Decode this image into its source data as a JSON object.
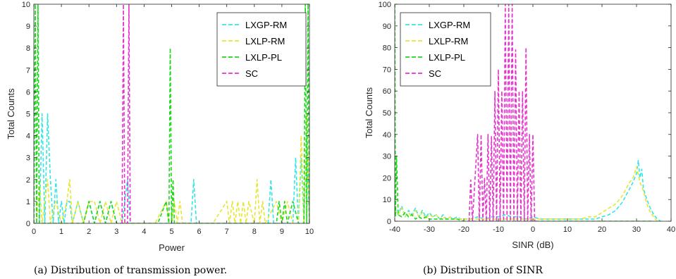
{
  "series_colors": {
    "LXGP-RM": "#33e6e6",
    "LXLP-RM": "#e6e633",
    "LXLP-PL": "#19d919",
    "SC": "#e633cc"
  },
  "chart_data": [
    {
      "type": "line",
      "caption": "(a) Distribution of transmission power.",
      "title": "",
      "xlabel": "Power",
      "ylabel": "Total Counts",
      "xlim": [
        0,
        10
      ],
      "ylim": [
        0,
        10
      ],
      "xticks": [
        0,
        1,
        2,
        3,
        4,
        5,
        6,
        7,
        8,
        9,
        10
      ],
      "yticks": [
        0,
        1,
        2,
        3,
        4,
        5,
        6,
        7,
        8,
        9,
        10
      ],
      "grid": false,
      "legend": "top-right",
      "series": [
        {
          "name": "LXGP-RM",
          "x": [
            0.05,
            0.2,
            0.3,
            0.4,
            0.5,
            0.6,
            0.7,
            0.8,
            0.9,
            1.0,
            1.1,
            1.2,
            1.3,
            1.4,
            1.6,
            1.8,
            2.0,
            2.2,
            2.4,
            2.6,
            2.8,
            3.0,
            3.2,
            3.3,
            3.4,
            3.5,
            3.6,
            4.0,
            4.4,
            4.8,
            5.2,
            5.6,
            5.7,
            5.8,
            5.9,
            6.0,
            6.4,
            6.8,
            7.2,
            7.6,
            8.0,
            8.4,
            8.5,
            8.6,
            8.7,
            8.8,
            9.0,
            9.2,
            9.4,
            9.5,
            9.6,
            9.7,
            9.8,
            9.9,
            10.0
          ],
          "y": [
            0,
            0,
            5,
            0,
            5,
            2,
            0,
            2,
            0,
            1,
            0,
            1,
            1,
            0,
            1,
            0,
            1,
            0,
            1,
            0,
            1,
            0,
            0,
            1,
            2,
            0,
            0,
            0,
            0,
            0,
            0,
            0,
            0,
            2,
            0,
            0,
            0,
            0,
            0,
            0,
            0,
            0,
            0,
            2,
            0,
            0,
            0,
            0,
            0,
            3,
            0,
            3,
            0,
            4,
            0
          ]
        },
        {
          "name": "LXLP-RM",
          "x": [
            0.1,
            0.2,
            0.3,
            0.4,
            0.5,
            0.6,
            0.8,
            1.0,
            1.2,
            1.3,
            1.4,
            1.6,
            1.8,
            2.0,
            2.2,
            2.4,
            2.6,
            2.8,
            3.0,
            3.2,
            3.6,
            4.0,
            4.4,
            4.8,
            4.9,
            5.0,
            5.1,
            5.2,
            5.3,
            5.4,
            6.0,
            6.5,
            7.0,
            7.1,
            7.2,
            7.3,
            7.4,
            7.5,
            7.6,
            7.7,
            7.8,
            8.0,
            8.1,
            8.2,
            8.3,
            8.4,
            8.8,
            9.0,
            9.2,
            9.4,
            9.6,
            9.7,
            9.8,
            9.9,
            10.0
          ],
          "y": [
            0,
            2,
            0,
            1,
            2,
            0,
            1,
            0,
            1,
            2,
            0,
            1,
            0,
            1,
            1,
            0,
            1,
            0,
            1,
            0,
            0,
            0,
            0,
            1,
            0,
            0,
            1,
            0,
            1,
            0,
            0,
            0,
            1,
            0,
            1,
            0,
            1,
            0,
            1,
            0,
            1,
            0,
            2,
            0,
            1,
            0,
            1,
            0,
            1,
            0,
            0,
            4,
            0,
            5,
            0
          ]
        },
        {
          "name": "LXLP-PL",
          "x": [
            0.0,
            0.05,
            0.1,
            0.15,
            0.2,
            0.5,
            1.0,
            1.8,
            2.0,
            2.2,
            2.4,
            2.6,
            2.8,
            3.0,
            3.2,
            4.0,
            4.5,
            4.8,
            4.9,
            4.95,
            5.0,
            5.05,
            5.1,
            5.2,
            5.5,
            6.0,
            7.0,
            8.0,
            8.8,
            8.9,
            9.0,
            9.1,
            9.2,
            9.4,
            9.6,
            9.7,
            9.8,
            9.85,
            9.9,
            9.95,
            10.0
          ],
          "y": [
            0,
            10,
            0,
            10,
            0,
            0,
            0,
            0,
            1,
            0,
            1,
            0,
            1,
            0,
            0,
            0,
            0,
            1,
            0,
            8,
            0,
            2,
            0,
            0,
            0,
            0,
            0,
            0,
            0,
            1,
            0,
            1,
            0,
            1,
            0,
            0,
            0,
            10,
            0,
            10,
            0
          ]
        },
        {
          "name": "SC",
          "x": [
            3.2,
            3.25,
            3.3,
            3.4,
            3.45,
            3.5
          ],
          "y": [
            0,
            10,
            0,
            0,
            10,
            0
          ]
        }
      ]
    },
    {
      "type": "line",
      "caption": "(b) Distribution of SINR",
      "title": "",
      "xlabel": "SINR (dB)",
      "ylabel": "Total Counts",
      "xlim": [
        -40,
        40
      ],
      "ylim": [
        0,
        100
      ],
      "xticks": [
        -40,
        -30,
        -20,
        -10,
        0,
        10,
        20,
        30,
        40
      ],
      "yticks": [
        0,
        10,
        20,
        30,
        40,
        50,
        60,
        70,
        80,
        90,
        100
      ],
      "grid": false,
      "legend": "top-left",
      "series": [
        {
          "name": "LXGP-RM",
          "x": [
            -40,
            -39,
            -38,
            -37,
            -36,
            -35,
            -34,
            -33,
            -32,
            -31,
            -30,
            -29,
            -28,
            -27,
            -26,
            -25,
            -24,
            -23,
            -22,
            -21,
            -20,
            -18,
            -16,
            -14,
            -12,
            -10,
            -8,
            -6,
            -4,
            -2,
            0,
            2,
            4,
            6,
            8,
            10,
            12,
            14,
            16,
            18,
            20,
            22,
            24,
            25,
            26,
            27,
            28,
            29,
            30,
            30.5,
            31,
            31.5,
            32,
            33,
            34,
            35,
            36,
            37
          ],
          "y": [
            6,
            3,
            7,
            2,
            5,
            3,
            6,
            2,
            5,
            2,
            4,
            2,
            3,
            1,
            3,
            1,
            2,
            1,
            2,
            1,
            1,
            1,
            2,
            1,
            2,
            2,
            3,
            2,
            2,
            1,
            2,
            1,
            1,
            1,
            1,
            1,
            1,
            1,
            1,
            1,
            2,
            3,
            5,
            7,
            9,
            12,
            15,
            18,
            22,
            28,
            20,
            24,
            15,
            10,
            6,
            3,
            1,
            0
          ]
        },
        {
          "name": "LXLP-RM",
          "x": [
            -40,
            -39,
            -38,
            -37,
            -36,
            -35,
            -34,
            -33,
            -32,
            -31,
            -30,
            -29,
            -28,
            -27,
            -26,
            -25,
            -24,
            -23,
            -22,
            -21,
            -20,
            -18,
            -16,
            -14,
            -12,
            -10,
            -8,
            -6,
            -4,
            -2,
            0,
            2,
            4,
            6,
            8,
            10,
            12,
            14,
            16,
            18,
            20,
            22,
            24,
            25,
            26,
            27,
            28,
            29,
            30,
            31,
            32,
            33,
            34,
            35,
            36
          ],
          "y": [
            5,
            3,
            6,
            2,
            4,
            2,
            5,
            2,
            4,
            1,
            3,
            2,
            3,
            1,
            2,
            1,
            2,
            1,
            1,
            1,
            1,
            1,
            1,
            1,
            1,
            1,
            1,
            1,
            1,
            1,
            1,
            1,
            1,
            1,
            1,
            1,
            1,
            1,
            2,
            2,
            4,
            6,
            8,
            10,
            12,
            15,
            18,
            20,
            25,
            18,
            14,
            8,
            4,
            2,
            0
          ]
        },
        {
          "name": "LXLP-PL",
          "x": [
            -40,
            -39.8,
            -39.5,
            -39,
            -38,
            -37,
            -36,
            -35,
            -34,
            -33,
            -32,
            -31,
            -30,
            -28,
            -26,
            -24,
            -22,
            -20,
            -15,
            -10,
            -5,
            0,
            5,
            10,
            15,
            20,
            25,
            30,
            35
          ],
          "y": [
            100,
            2,
            30,
            3,
            2,
            4,
            2,
            3,
            1,
            2,
            1,
            2,
            1,
            1,
            1,
            1,
            1,
            0,
            0,
            0,
            0,
            0,
            0,
            0,
            0,
            0,
            0,
            0,
            0
          ]
        },
        {
          "name": "SC",
          "x": [
            -18.5,
            -18,
            -17.5,
            -16,
            -15.5,
            -15,
            -14.5,
            -14,
            -13.5,
            -13,
            -12.5,
            -12,
            -11.5,
            -11,
            -10.5,
            -10,
            -9.5,
            -9,
            -8.5,
            -8,
            -7.5,
            -7,
            -6.5,
            -6,
            -5.5,
            -5,
            -4.5,
            -4,
            -3.5,
            -3,
            -2.5,
            -2,
            -1.5,
            -1,
            -0.5,
            0,
            0.5,
            1
          ],
          "y": [
            0,
            19,
            0,
            40,
            0,
            40,
            0,
            20,
            0,
            40,
            0,
            39,
            0,
            60,
            0,
            70,
            0,
            60,
            0,
            100,
            0,
            100,
            0,
            100,
            0,
            79,
            0,
            60,
            0,
            60,
            0,
            80,
            0,
            40,
            0,
            40,
            0,
            0
          ]
        }
      ]
    }
  ]
}
